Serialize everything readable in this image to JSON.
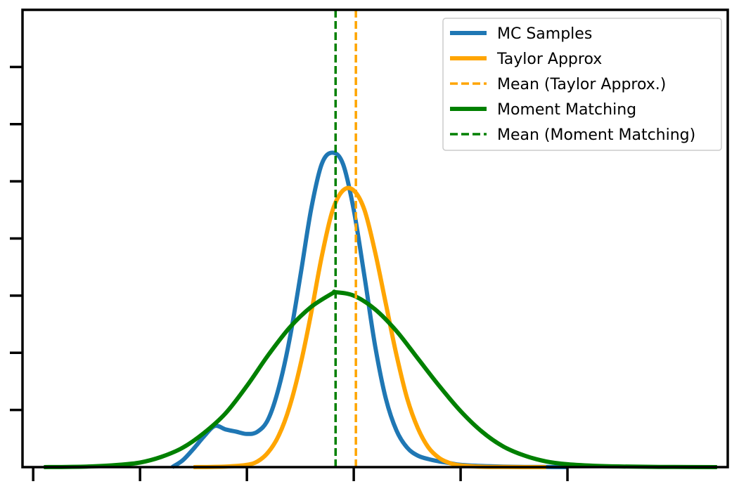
{
  "chart_data": {
    "type": "line",
    "title": "",
    "xlabel": "",
    "ylabel": "",
    "xlim": [
      -3.1,
      3.5
    ],
    "ylim": [
      0,
      4.0
    ],
    "x_ticks": [
      -3,
      -2,
      -1,
      0,
      1,
      2
    ],
    "y_ticks": [
      0.5,
      1.0,
      1.5,
      2.0,
      2.5,
      3.0,
      3.5
    ],
    "tick_labels_shown": false,
    "grid": false,
    "legend_position": "top-right",
    "series": [
      {
        "name": "MC Samples",
        "style": "solid",
        "color": "#1f77b4",
        "x": [
          -1.7,
          -1.6,
          -1.5,
          -1.4,
          -1.3,
          -1.2,
          -1.1,
          -1.0,
          -0.9,
          -0.8,
          -0.7,
          -0.6,
          -0.5,
          -0.4,
          -0.3,
          -0.2,
          -0.1,
          0.0,
          0.1,
          0.2,
          0.3,
          0.4,
          0.5,
          0.6,
          0.7,
          0.8,
          0.9,
          1.0,
          1.2,
          1.4,
          1.6,
          1.8,
          2.0
        ],
        "y": [
          0.0,
          0.06,
          0.16,
          0.27,
          0.36,
          0.33,
          0.31,
          0.29,
          0.31,
          0.42,
          0.7,
          1.12,
          1.67,
          2.25,
          2.65,
          2.75,
          2.65,
          2.25,
          1.67,
          1.06,
          0.6,
          0.32,
          0.17,
          0.1,
          0.07,
          0.05,
          0.035,
          0.02,
          0.01,
          0.005,
          0.002,
          0.001,
          0.0
        ]
      },
      {
        "name": "Taylor Approx",
        "style": "solid",
        "color": "#ffa500",
        "x": [
          -1.5,
          -1.2,
          -1.0,
          -0.9,
          -0.8,
          -0.7,
          -0.6,
          -0.5,
          -0.4,
          -0.3,
          -0.2,
          -0.1,
          0.0,
          0.1,
          0.2,
          0.3,
          0.4,
          0.5,
          0.6,
          0.7,
          0.8,
          0.9,
          1.0,
          1.2,
          1.4,
          1.6,
          1.8
        ],
        "y": [
          0.0,
          0.005,
          0.02,
          0.05,
          0.13,
          0.28,
          0.53,
          0.89,
          1.34,
          1.84,
          2.24,
          2.42,
          2.42,
          2.25,
          1.88,
          1.43,
          0.98,
          0.6,
          0.34,
          0.17,
          0.08,
          0.035,
          0.015,
          0.003,
          0.001,
          0.0,
          0.0
        ]
      },
      {
        "name": "Mean (Taylor Approx.)",
        "style": "dashed",
        "color": "#ffa500",
        "x": [
          0.02,
          0.02
        ],
        "y": [
          0,
          4.0
        ]
      },
      {
        "name": "Moment Matching",
        "style": "solid",
        "color": "#008000",
        "x": [
          -2.9,
          -2.5,
          -2.2,
          -2.0,
          -1.8,
          -1.6,
          -1.4,
          -1.2,
          -1.0,
          -0.8,
          -0.6,
          -0.4,
          -0.2,
          -0.17,
          0.0,
          0.2,
          0.4,
          0.6,
          0.8,
          1.0,
          1.2,
          1.4,
          1.6,
          1.8,
          2.0,
          2.3,
          2.6,
          3.0,
          3.4
        ],
        "y": [
          0.0,
          0.005,
          0.02,
          0.04,
          0.09,
          0.17,
          0.3,
          0.47,
          0.71,
          0.98,
          1.22,
          1.4,
          1.52,
          1.53,
          1.5,
          1.38,
          1.19,
          0.95,
          0.71,
          0.49,
          0.31,
          0.18,
          0.1,
          0.05,
          0.025,
          0.01,
          0.004,
          0.001,
          0.0
        ]
      },
      {
        "name": "Mean (Moment Matching)",
        "style": "dashed",
        "color": "#008000",
        "x": [
          -0.17,
          -0.17
        ],
        "y": [
          0,
          4.0
        ]
      }
    ]
  }
}
